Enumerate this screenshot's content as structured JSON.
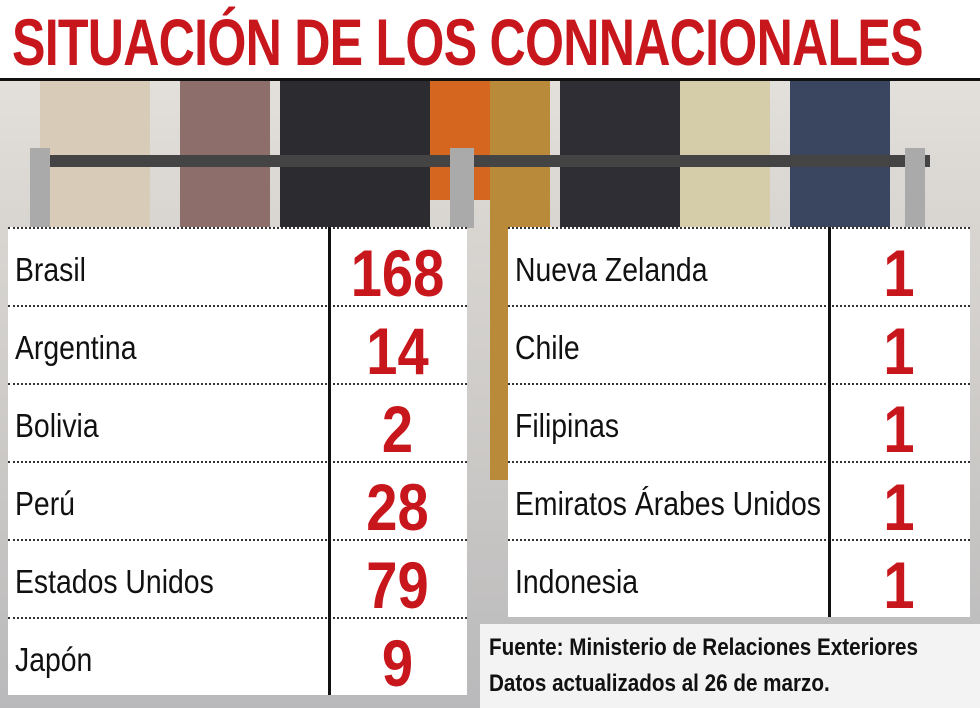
{
  "header": {
    "title": "SITUACIÓN DE LOS CONNACIONALES"
  },
  "tables": [
    {
      "rows": [
        [
          "Brasil",
          168
        ],
        [
          "Argentina",
          14
        ],
        [
          "Bolivia",
          2
        ],
        [
          "Perú",
          28
        ],
        [
          "Estados Unidos",
          79
        ],
        [
          "Japón",
          9
        ]
      ]
    },
    {
      "rows": [
        [
          "Nueva Zelanda",
          1
        ],
        [
          "Chile",
          1
        ],
        [
          "Filipinas",
          1
        ],
        [
          "Emiratos Árabes Unidos",
          1
        ],
        [
          "Indonesia",
          1
        ]
      ]
    }
  ],
  "footer": {
    "source": "Fuente: Ministerio de Relaciones Exteriores",
    "note": "Datos actualizados al 26 de marzo."
  }
}
